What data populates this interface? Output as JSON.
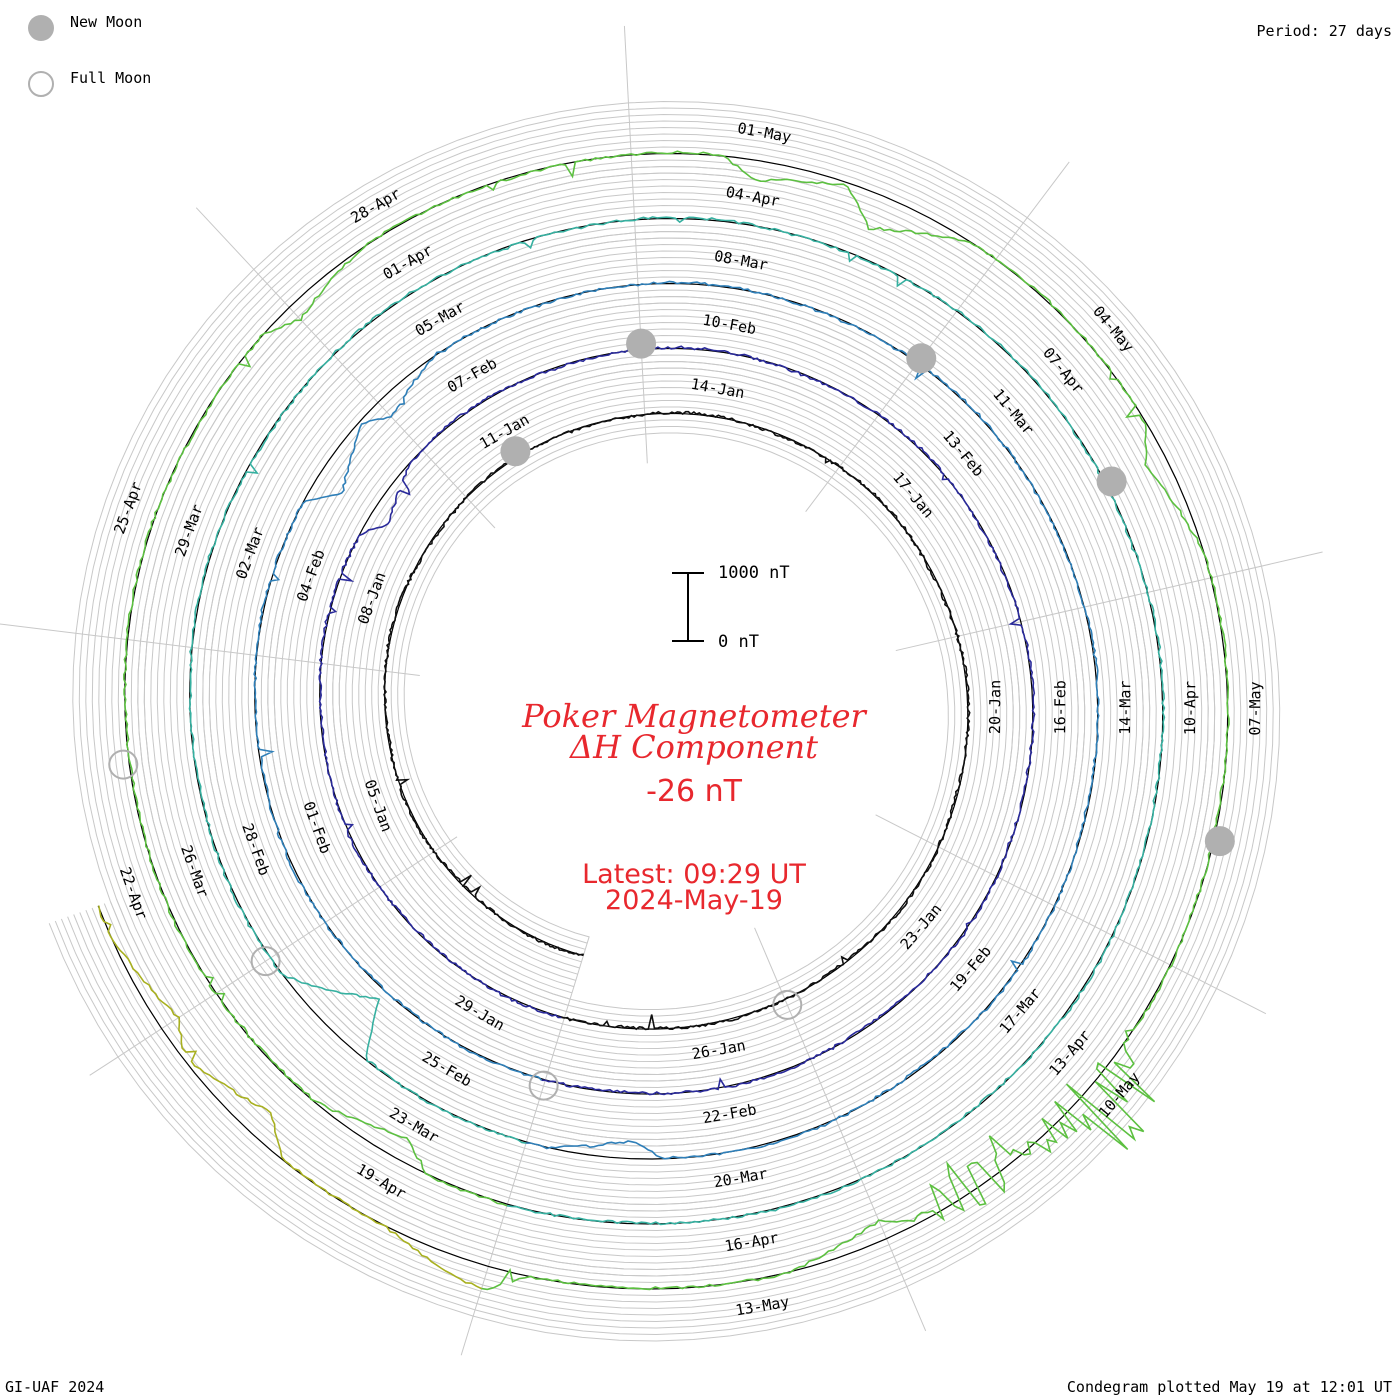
{
  "legend": {
    "new_moon_label": "New Moon",
    "full_moon_label": "Full Moon",
    "new_moon_color": "#b0b0b0",
    "full_moon_color": "#b0b0b0"
  },
  "period_label": "Period: 27 days",
  "footer_left": "GI-UAF 2024",
  "footer_right": "Condegram plotted May 19 at 12:01 UT",
  "scale_bar": {
    "top_label": "1000 nT",
    "bottom_label": "0 nT"
  },
  "title": {
    "line1": "Poker Magnetometer",
    "line2": "ΔH Component",
    "value": "-26 nT",
    "latest": "Latest: 09:29 UT",
    "date": "2024-May-19"
  },
  "chart_data": {
    "type": "line",
    "description_of_axes": "spiral time axis, 27-day period per revolution; radial deflection = ΔH in nT",
    "period_days": 27,
    "start_date": "2024-01-01",
    "end_date": "2024-05-19",
    "scale_nT": 1000,
    "colors": [
      "#101010",
      "#2a2a9a",
      "#2f7fb8",
      "#36b0a0",
      "#5cc040",
      "#a8b020",
      "#c88018",
      "#c84010",
      "#c81010"
    ],
    "date_labels": [
      "05-Jan",
      "08-Jan",
      "11-Jan",
      "14-Jan",
      "17-Jan",
      "20-Jan",
      "23-Jan",
      "26-Jan",
      "29-Jan",
      "01-Feb",
      "04-Feb",
      "07-Feb",
      "10-Feb",
      "13-Feb",
      "16-Feb",
      "19-Feb",
      "22-Feb",
      "25-Feb",
      "28-Feb",
      "02-Mar",
      "05-Mar",
      "08-Mar",
      "11-Mar",
      "14-Mar",
      "17-Mar",
      "20-Mar",
      "23-Mar",
      "26-Mar",
      "29-Mar",
      "01-Apr",
      "04-Apr",
      "07-Apr",
      "10-Apr",
      "13-Apr",
      "16-Apr",
      "19-Apr",
      "22-Apr",
      "25-Apr",
      "28-Apr",
      "01-May",
      "04-May",
      "07-May",
      "10-May",
      "13-May"
    ],
    "new_moons": [
      "2024-01-11",
      "2024-02-09",
      "2024-03-10",
      "2024-04-08",
      "2024-05-08"
    ],
    "full_moons": [
      "2024-01-25",
      "2024-02-24",
      "2024-03-25",
      "2024-04-23"
    ],
    "events": [
      {
        "date": "2024-02-05",
        "dH": -280
      },
      {
        "date": "2024-03-03",
        "dH": -420
      },
      {
        "date": "2024-03-04",
        "dH": -300
      },
      {
        "date": "2024-03-24",
        "dH": -800
      },
      {
        "date": "2024-03-21",
        "dH": -250
      },
      {
        "date": "2024-04-19",
        "dH": -350
      },
      {
        "date": "2024-04-27",
        "dH": -250
      },
      {
        "date": "2024-05-01",
        "dH": -300
      },
      {
        "date": "2024-05-02",
        "dH": -500
      },
      {
        "date": "2024-05-05",
        "dH": -300
      },
      {
        "date": "2024-05-10",
        "dH": 1500
      },
      {
        "date": "2024-05-11",
        "dH": -1100
      },
      {
        "date": "2024-05-12",
        "dH": -300
      },
      {
        "date": "2024-05-15",
        "dH": 350
      },
      {
        "date": "2024-05-17",
        "dH": -400
      },
      {
        "date": "2024-05-18",
        "dH": -300
      }
    ]
  }
}
